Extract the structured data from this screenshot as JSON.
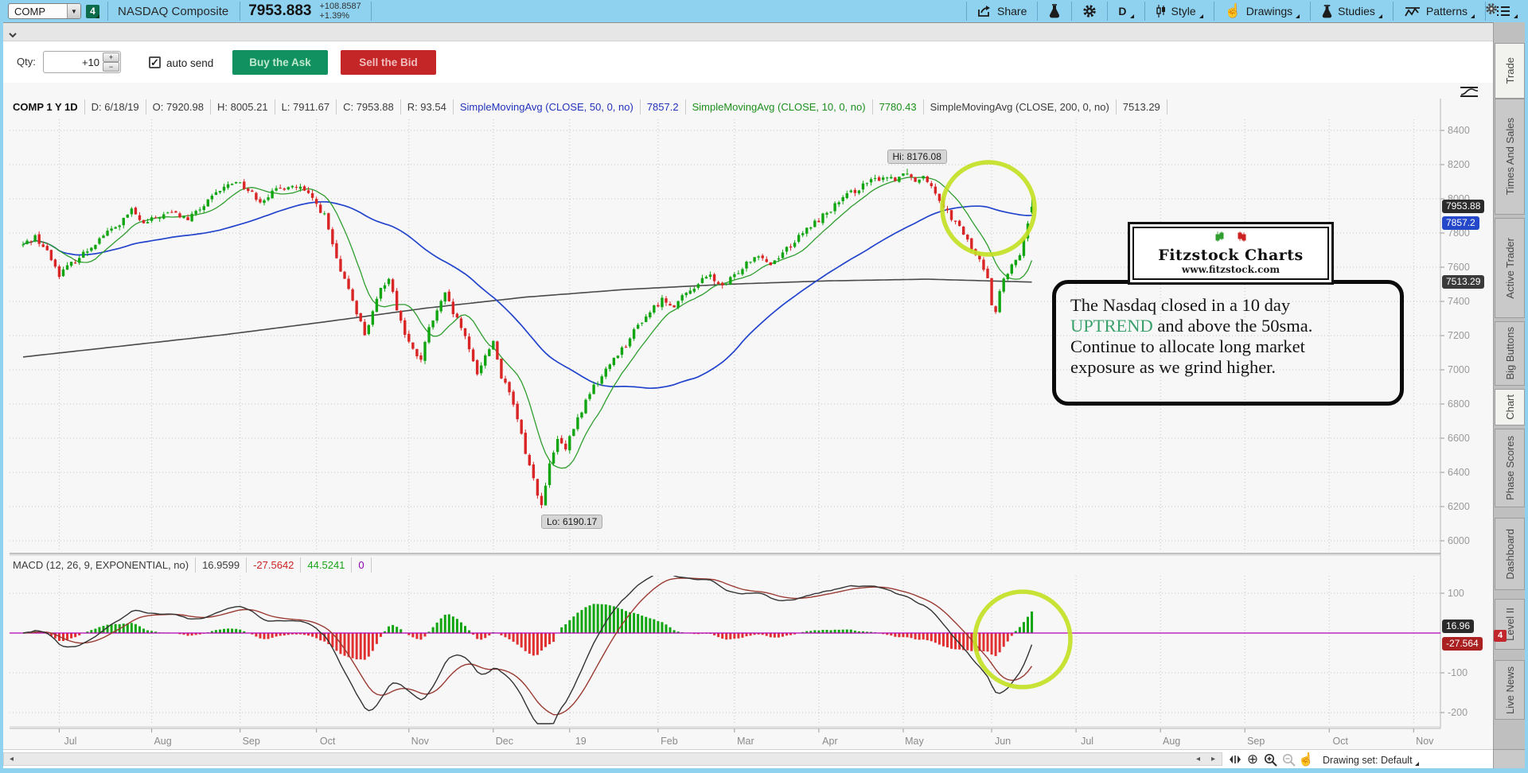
{
  "toolbar": {
    "symbol": "COMP",
    "flag_count": "4",
    "symbol_name": "NASDAQ Composite",
    "last_price": "7953.883",
    "change": "+108.8587",
    "change_pct": "+1.39%",
    "share_label": "Share",
    "timeframe_label": "D",
    "style_label": "Style",
    "drawings_label": "Drawings",
    "studies_label": "Studies",
    "patterns_label": "Patterns"
  },
  "gray_bar": {
    "collapse_icon": "chevron-down"
  },
  "trade_bar": {
    "qty_label": "Qty:",
    "qty_value": "+10",
    "auto_send_label": "auto send",
    "auto_send_checked": "✓",
    "buy_label": "Buy the Ask",
    "sell_label": "Sell the Bid"
  },
  "chart_header": {
    "cells": [
      {
        "text": "COMP 1 Y 1D",
        "color": "#111111",
        "bold": true
      },
      {
        "text": "D: 6/18/19",
        "color": "#3c3c3c"
      },
      {
        "text": "O: 7920.98",
        "color": "#3c3c3c"
      },
      {
        "text": "H: 8005.21",
        "color": "#3c3c3c"
      },
      {
        "text": "L: 7911.67",
        "color": "#3c3c3c"
      },
      {
        "text": "C: 7953.88",
        "color": "#3c3c3c"
      },
      {
        "text": "R: 93.54",
        "color": "#3c3c3c"
      },
      {
        "text": "SimpleMovingAvg (CLOSE, 50, 0, no)",
        "color": "#2233bb"
      },
      {
        "text": "7857.2",
        "color": "#2233bb"
      },
      {
        "text": "SimpleMovingAvg (CLOSE, 10, 0, no)",
        "color": "#1e8f1e"
      },
      {
        "text": "7780.43",
        "color": "#1e8f1e"
      },
      {
        "text": "SimpleMovingAvg (CLOSE, 200, 0, no)",
        "color": "#3c3c3c"
      },
      {
        "text": "7513.29",
        "color": "#3c3c3c"
      }
    ]
  },
  "macd_header": {
    "cells": [
      {
        "text": "MACD (12, 26, 9, EXPONENTIAL, no)",
        "color": "#3c3c3c"
      },
      {
        "text": "16.9599",
        "color": "#3c3c3c"
      },
      {
        "text": "-27.5642",
        "color": "#cc2222"
      },
      {
        "text": "44.5241",
        "color": "#17a317"
      },
      {
        "text": "0",
        "color": "#8b00b0"
      }
    ]
  },
  "annotation": {
    "line1": "The Nasdaq closed in a 10 day",
    "highlight": "UPTREND",
    "line2_rest": " and above the 50sma.",
    "line3": "Continue to allocate long market",
    "line4": "exposure as we grind higher."
  },
  "logo": {
    "title": "Fitzstock Charts",
    "url": "www.fitzstock.com"
  },
  "sidebar": {
    "tabs": [
      {
        "label": "Trade",
        "active": true
      },
      {
        "label": "Times And Sales",
        "active": false
      },
      {
        "label": "Active Trader",
        "active": false
      },
      {
        "label": "Big Buttons",
        "active": false
      },
      {
        "label": "Chart",
        "active": true
      },
      {
        "label": "Phase Scores",
        "active": false
      },
      {
        "label": "Dashboard",
        "active": false
      },
      {
        "label": "Level II",
        "active": false
      },
      {
        "label": "Live News",
        "active": false
      }
    ],
    "badge": "4"
  },
  "bottom": {
    "drawing_set": "Drawing set: Default"
  },
  "chart_data": {
    "type": "candlestick+macd",
    "symbol": "COMP",
    "timeframe": "1 Y 1D",
    "hi_label": "Hi: 8176.08",
    "lo_label": "Lo: 6190.17",
    "high_price": 8176.08,
    "low_price": 6190.17,
    "last_candle": {
      "open": 7920.98,
      "high": 8005.21,
      "low": 7911.67,
      "close": 7953.88
    },
    "sma50_last": 7857.2,
    "sma10_last": 7780.43,
    "sma200_last": 7513.29,
    "price_ticks": [
      8400,
      8200,
      8000,
      7800,
      7600,
      7400,
      7200,
      7000,
      6800,
      6600,
      6400,
      6200,
      6000
    ],
    "macd_ticks": [
      100,
      -100,
      -200
    ],
    "months": [
      {
        "label": "Jul",
        "d": 9
      },
      {
        "label": "Aug",
        "d": 32
      },
      {
        "label": "Sep",
        "d": 54
      },
      {
        "label": "Oct",
        "d": 73
      },
      {
        "label": "Nov",
        "d": 96
      },
      {
        "label": "Dec",
        "d": 117
      },
      {
        "label": "19",
        "d": 136
      },
      {
        "label": "Feb",
        "d": 158
      },
      {
        "label": "Mar",
        "d": 177
      },
      {
        "label": "Apr",
        "d": 198
      },
      {
        "label": "May",
        "d": 219
      },
      {
        "label": "Jun",
        "d": 241
      },
      {
        "label": "Jul",
        "d": 262
      },
      {
        "label": "Aug",
        "d": 283
      },
      {
        "label": "Sep",
        "d": 304
      },
      {
        "label": "Oct",
        "d": 325
      },
      {
        "label": "Nov",
        "d": 346
      }
    ],
    "price_anchors": [
      [
        0,
        7730
      ],
      [
        3,
        7780
      ],
      [
        6,
        7690
      ],
      [
        9,
        7560
      ],
      [
        12,
        7620
      ],
      [
        16,
        7700
      ],
      [
        20,
        7790
      ],
      [
        24,
        7850
      ],
      [
        27,
        7932
      ],
      [
        30,
        7850
      ],
      [
        33,
        7890
      ],
      [
        37,
        7920
      ],
      [
        41,
        7880
      ],
      [
        45,
        7960
      ],
      [
        49,
        8050
      ],
      [
        53,
        8109
      ],
      [
        56,
        8050
      ],
      [
        59,
        7990
      ],
      [
        62,
        8035
      ],
      [
        66,
        8079
      ],
      [
        69,
        8060
      ],
      [
        72,
        8000
      ],
      [
        75,
        7900
      ],
      [
        77,
        7730
      ],
      [
        79,
        7560
      ],
      [
        81,
        7480
      ],
      [
        83,
        7340
      ],
      [
        85,
        7210
      ],
      [
        87,
        7330
      ],
      [
        89,
        7470
      ],
      [
        91,
        7545
      ],
      [
        93,
        7360
      ],
      [
        95,
        7210
      ],
      [
        97,
        7110
      ],
      [
        99,
        7060
      ],
      [
        101,
        7240
      ],
      [
        103,
        7340
      ],
      [
        105,
        7440
      ],
      [
        107,
        7330
      ],
      [
        109,
        7250
      ],
      [
        111,
        7110
      ],
      [
        113,
        6985
      ],
      [
        115,
        7080
      ],
      [
        117,
        7170
      ],
      [
        119,
        6960
      ],
      [
        121,
        6860
      ],
      [
        123,
        6710
      ],
      [
        125,
        6520
      ],
      [
        127,
        6360
      ],
      [
        129,
        6200
      ],
      [
        131,
        6440
      ],
      [
        133,
        6590
      ],
      [
        135,
        6530
      ],
      [
        137,
        6660
      ],
      [
        139,
        6760
      ],
      [
        141,
        6870
      ],
      [
        144,
        6960
      ],
      [
        147,
        7070
      ],
      [
        150,
        7150
      ],
      [
        153,
        7260
      ],
      [
        156,
        7340
      ],
      [
        159,
        7410
      ],
      [
        162,
        7380
      ],
      [
        165,
        7440
      ],
      [
        168,
        7510
      ],
      [
        171,
        7550
      ],
      [
        174,
        7480
      ],
      [
        177,
        7550
      ],
      [
        180,
        7630
      ],
      [
        183,
        7680
      ],
      [
        186,
        7615
      ],
      [
        189,
        7690
      ],
      [
        192,
        7750
      ],
      [
        195,
        7820
      ],
      [
        198,
        7880
      ],
      [
        201,
        7940
      ],
      [
        204,
        8000
      ],
      [
        207,
        8050
      ],
      [
        210,
        8090
      ],
      [
        214,
        8130
      ],
      [
        217,
        8120
      ],
      [
        220,
        8160
      ],
      [
        222,
        8100
      ],
      [
        224,
        8145
      ],
      [
        226,
        8080
      ],
      [
        228,
        8000
      ],
      [
        230,
        7925
      ],
      [
        232,
        7855
      ],
      [
        234,
        7800
      ],
      [
        236,
        7705
      ],
      [
        238,
        7635
      ],
      [
        240,
        7550
      ],
      [
        241,
        7390
      ],
      [
        242,
        7340
      ],
      [
        243,
        7450
      ],
      [
        244,
        7530
      ],
      [
        245,
        7560
      ],
      [
        246,
        7600
      ],
      [
        247,
        7640
      ],
      [
        248,
        7680
      ],
      [
        249,
        7750
      ],
      [
        250,
        7840
      ],
      [
        251,
        7954
      ]
    ],
    "ma200_anchors": [
      [
        0,
        7075
      ],
      [
        25,
        7140
      ],
      [
        50,
        7205
      ],
      [
        75,
        7280
      ],
      [
        100,
        7360
      ],
      [
        125,
        7425
      ],
      [
        150,
        7470
      ],
      [
        175,
        7500
      ],
      [
        200,
        7520
      ],
      [
        225,
        7530
      ],
      [
        251,
        7513
      ]
    ],
    "axis_badges": [
      {
        "text": "7953.88",
        "price": 7953.88,
        "bg": "#2b2b2b"
      },
      {
        "text": "7857.2",
        "price": 7857.2,
        "bg": "#2547c9"
      },
      {
        "text": "7513.29",
        "price": 7513.29,
        "bg": "#3a3a3a"
      }
    ],
    "macd_badges": [
      {
        "text": "16.96",
        "value": 16.96,
        "bg": "#2b2b2b"
      },
      {
        "text": "-27.564",
        "value": -27.564,
        "bg": "#aa2020"
      }
    ],
    "colors": {
      "up": "#11a611",
      "down": "#d92525",
      "sma10": "#2f9e2f",
      "sma50": "#2244cc",
      "sma200": "#4a4a4a",
      "macd_value": "#333333",
      "macd_avg": "#9a3b32",
      "hist_up": "#11a611",
      "hist_down": "#e03030",
      "zero_line": "#b400b4",
      "annotation_circle": "#c3df24",
      "grid": "#c4c4c4",
      "axis_text": "#9a9a9a"
    }
  }
}
